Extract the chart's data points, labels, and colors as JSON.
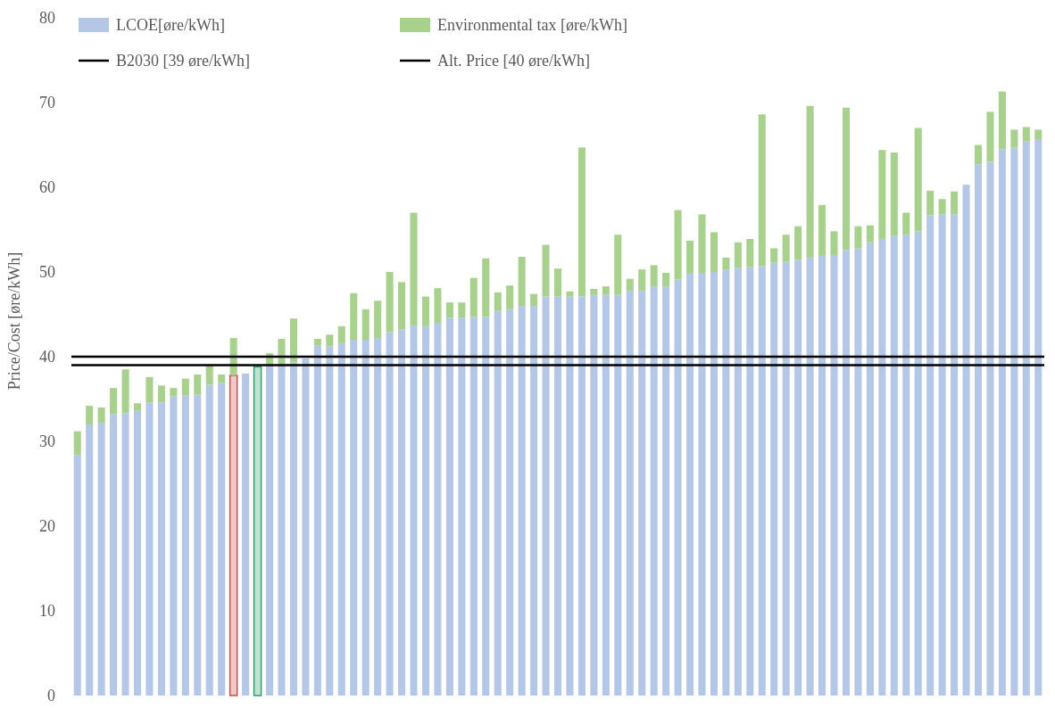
{
  "chart_data": {
    "type": "bar",
    "stacked": true,
    "ylabel": "Price/Cost [øre/kWh]",
    "categories": [
      null,
      null,
      null,
      null,
      null,
      null,
      null,
      null,
      null,
      null,
      null,
      null,
      null,
      null,
      null,
      null,
      null,
      null,
      null,
      null,
      null,
      null,
      null,
      null,
      null,
      null,
      null,
      null,
      null,
      null,
      null,
      null,
      null,
      null,
      null,
      null,
      null,
      null,
      null,
      null,
      null,
      null,
      null,
      null,
      null,
      null,
      null,
      null,
      null,
      null,
      null,
      null,
      null,
      null,
      null,
      null,
      null,
      null,
      null,
      null,
      null,
      null,
      null,
      null,
      null,
      null,
      null,
      null,
      null,
      null,
      null,
      null,
      null,
      null,
      null,
      null,
      null,
      null,
      null,
      null,
      null
    ],
    "series": [
      {
        "name": "LCOE[øre/kWh]",
        "color": "#b4c7e7",
        "colors": [
          "#b4c7e7",
          "#b4c7e7",
          "#b4c7e7",
          "#b4c7e7",
          "#b4c7e7",
          "#b4c7e7",
          "#b4c7e7",
          "#b4c7e7",
          "#b4c7e7",
          "#b4c7e7",
          "#b4c7e7",
          "#b4c7e7",
          "#b4c7e7",
          "#c0504d",
          "#b4c7e7",
          "#2e9e6e",
          "#b4c7e7",
          "#b4c7e7",
          "#b4c7e7",
          "#b4c7e7",
          "#b4c7e7",
          "#b4c7e7",
          "#b4c7e7",
          "#b4c7e7",
          "#b4c7e7",
          "#b4c7e7",
          "#b4c7e7",
          "#b4c7e7",
          "#b4c7e7",
          "#b4c7e7",
          "#b4c7e7",
          "#b4c7e7",
          "#b4c7e7",
          "#b4c7e7",
          "#b4c7e7",
          "#b4c7e7",
          "#b4c7e7",
          "#b4c7e7",
          "#b4c7e7",
          "#b4c7e7",
          "#b4c7e7",
          "#b4c7e7",
          "#b4c7e7",
          "#b4c7e7",
          "#b4c7e7",
          "#b4c7e7",
          "#b4c7e7",
          "#b4c7e7",
          "#b4c7e7",
          "#b4c7e7",
          "#b4c7e7",
          "#b4c7e7",
          "#b4c7e7",
          "#b4c7e7",
          "#b4c7e7",
          "#b4c7e7",
          "#b4c7e7",
          "#b4c7e7",
          "#b4c7e7",
          "#b4c7e7",
          "#b4c7e7",
          "#b4c7e7",
          "#b4c7e7",
          "#b4c7e7",
          "#b4c7e7",
          "#b4c7e7",
          "#b4c7e7",
          "#b4c7e7",
          "#b4c7e7",
          "#b4c7e7",
          "#b4c7e7",
          "#b4c7e7",
          "#b4c7e7",
          "#b4c7e7",
          "#b4c7e7",
          "#b4c7e7",
          "#b4c7e7",
          "#b4c7e7",
          "#b4c7e7",
          "#b4c7e7",
          "#b4c7e7"
        ],
        "values": [
          28.4,
          32.0,
          32.2,
          33.2,
          33.3,
          33.6,
          34.6,
          34.6,
          35.3,
          35.4,
          35.5,
          36.7,
          36.9,
          37.8,
          38.0,
          38.8,
          39.0,
          39.1,
          39.3,
          39.8,
          41.3,
          41.2,
          41.6,
          42.0,
          42.0,
          42.2,
          42.9,
          43.2,
          43.7,
          43.6,
          44.0,
          44.6,
          44.6,
          44.7,
          44.7,
          45.4,
          45.6,
          46.0,
          46.0,
          47.1,
          47.1,
          47.1,
          47.1,
          47.3,
          47.3,
          47.3,
          47.8,
          47.8,
          48.3,
          48.3,
          49.1,
          49.8,
          49.9,
          50.0,
          50.3,
          50.5,
          50.6,
          50.7,
          51.1,
          51.2,
          51.4,
          51.7,
          51.9,
          52.0,
          52.6,
          52.8,
          53.5,
          53.9,
          54.3,
          54.4,
          54.8,
          56.7,
          56.8,
          56.8,
          60.3,
          62.7,
          63.0,
          64.5,
          64.7,
          65.4,
          65.6
        ]
      },
      {
        "name": "Environmental tax [øre/kWh]",
        "color": "#a9d18e",
        "values": [
          2.8,
          2.2,
          1.8,
          3.1,
          5.2,
          0.9,
          3.0,
          2.0,
          1.0,
          2.0,
          2.4,
          2.3,
          1.0,
          4.4,
          0,
          0,
          1.4,
          3.0,
          5.2,
          0,
          0.8,
          1.4,
          2.0,
          5.5,
          3.6,
          4.4,
          7.1,
          5.6,
          13.3,
          3.5,
          4.1,
          1.8,
          1.8,
          4.6,
          6.9,
          2.2,
          2.8,
          5.8,
          1.4,
          6.1,
          3.3,
          0.6,
          17.6,
          0.7,
          1.0,
          7.1,
          1.4,
          2.5,
          2.5,
          1.6,
          8.2,
          3.9,
          6.9,
          4.7,
          1.4,
          3.0,
          3.3,
          17.9,
          1.7,
          3.2,
          4.0,
          17.9,
          6.0,
          2.8,
          16.8,
          2.6,
          2.0,
          10.5,
          9.8,
          2.6,
          12.2,
          2.9,
          1.8,
          2.7,
          0,
          2.3,
          5.9,
          6.8,
          2.1,
          1.7,
          1.2
        ]
      }
    ],
    "ylim": [
      0,
      80
    ],
    "yticks": [
      0,
      10,
      20,
      30,
      40,
      50,
      60,
      70,
      80
    ],
    "ref_lines": [
      {
        "axis": "y",
        "value": 39,
        "label": "B2030 [39 øre/kWh]",
        "color": "#000000"
      },
      {
        "axis": "y",
        "value": 40,
        "label": "Alt. Price [40 øre/kWh]",
        "color": "#000000"
      }
    ],
    "grid": false,
    "legend": "top"
  }
}
